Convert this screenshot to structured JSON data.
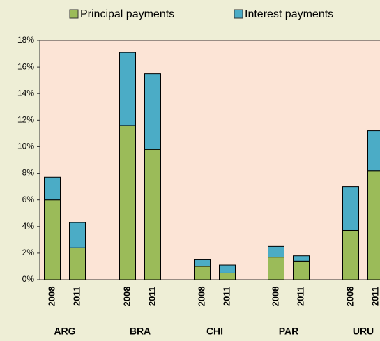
{
  "chart_data": {
    "type": "stacked-bar",
    "categories": [
      "2008",
      "2011",
      "2008",
      "2011",
      "2008",
      "2011",
      "2008",
      "2011",
      "2008",
      "2011"
    ],
    "groups": [
      "ARG",
      "BRA",
      "CHI",
      "PAR",
      "URU"
    ],
    "series": [
      {
        "name": "Principal payments",
        "color": "#9bbb59",
        "values": [
          6.0,
          2.4,
          11.6,
          9.8,
          1.0,
          0.5,
          1.7,
          1.4,
          3.7,
          8.2
        ]
      },
      {
        "name": "Interest payments",
        "color": "#4bacc6",
        "values": [
          1.7,
          1.9,
          5.5,
          5.7,
          0.5,
          0.6,
          0.8,
          0.4,
          3.3,
          3.0
        ]
      }
    ],
    "ylim": [
      0,
      18
    ],
    "yticks": [
      {
        "value": 0,
        "label": "0%"
      },
      {
        "value": 2,
        "label": "2%"
      },
      {
        "value": 4,
        "label": "4%"
      },
      {
        "value": 6,
        "label": "6%"
      },
      {
        "value": 8,
        "label": "8%"
      },
      {
        "value": 10,
        "label": "10%"
      },
      {
        "value": 12,
        "label": "12%"
      },
      {
        "value": 14,
        "label": "14%"
      },
      {
        "value": 16,
        "label": "16%"
      },
      {
        "value": 18,
        "label": "18%"
      }
    ],
    "legend": "top"
  }
}
